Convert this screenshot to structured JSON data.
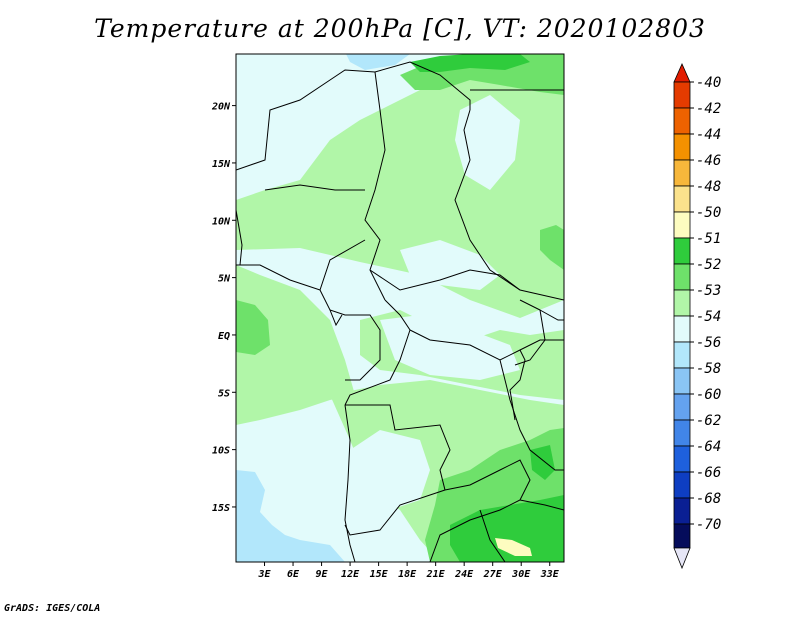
{
  "title": "Temperature at 200hPa [C], VT: 2020102803",
  "credit": "GrADS: IGES/COLA",
  "map": {
    "lon_ticks": [
      "3E",
      "6E",
      "9E",
      "12E",
      "15E",
      "18E",
      "21E",
      "24E",
      "27E",
      "30E",
      "33E"
    ],
    "lat_ticks": [
      "20N",
      "15N",
      "10N",
      "5N",
      "EQ",
      "5S",
      "10S",
      "15S"
    ],
    "region": {
      "lon_min": 0,
      "lon_max": 34.5,
      "lat_min": -19.8,
      "lat_max": 24.5
    }
  },
  "colorbar": {
    "labels": [
      "-40",
      "-42",
      "-44",
      "-46",
      "-48",
      "-50",
      "-51",
      "-52",
      "-53",
      "-54",
      "-56",
      "-58",
      "-60",
      "-62",
      "-64",
      "-66",
      "-68",
      "-70"
    ],
    "colors": {
      "top_arrow": "#e21c00",
      "bands": [
        "#e43b00",
        "#ed6200",
        "#f49100",
        "#f7b73b",
        "#fbe28c",
        "#fdfcc0",
        "#2fcc3c",
        "#6ee16a",
        "#b1f6a8",
        "#e2fbfb",
        "#b2e7fb",
        "#8ac5f5",
        "#64a2ef",
        "#4185e8",
        "#1e60dd",
        "#0e3ec2",
        "#0a1f93",
        "#050c5b"
      ],
      "bottom_arrow": "#e6e6f6"
    }
  },
  "field_colors": {
    "c_minus_54": "#e2fbfb",
    "c_minus_53": "#b1f6a8",
    "c_minus_52": "#6ee16a",
    "c_minus_51": "#2fcc3c",
    "c_minus_50": "#fdfcc0",
    "c_minus_56": "#b2e7fb"
  }
}
